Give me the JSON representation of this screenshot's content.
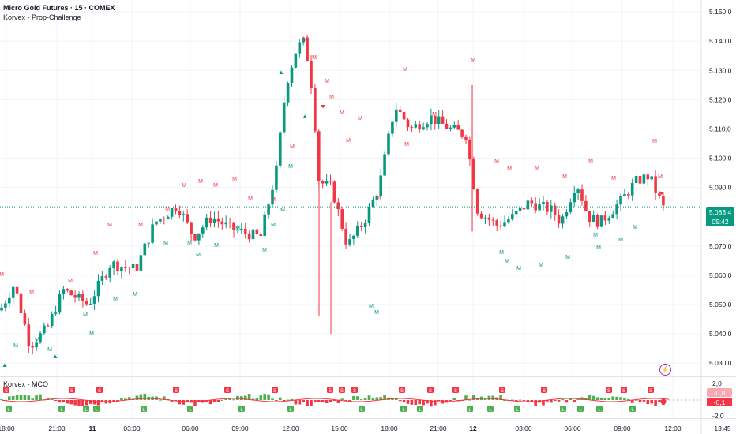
{
  "header": {
    "title": "Micro Gold Futures · 15 · COMEX",
    "indicator_main": "Korvex - Prop-Challenge",
    "indicator_sub": "Korvex - MCO"
  },
  "price_tag": {
    "price": "5.083,4",
    "countdown": "05:42"
  },
  "sub_tags": {
    "top": "-0,0",
    "bottom": "-0,1"
  },
  "sub_axis_labels": [
    "2,0",
    "-2,0"
  ],
  "icons": {
    "bolt": "lightning-icon"
  },
  "colors": {
    "up": "#089981",
    "down": "#f23645",
    "mco_up": "#4caf50",
    "mco_down": "#f23645",
    "ma": "#9c27b0"
  },
  "chart_data": {
    "type": "candlestick",
    "y_ticks": [
      "5.150,0",
      "5.140,0",
      "5.130,0",
      "5.120,0",
      "5.110,0",
      "5.100,0",
      "5.090,0",
      "5.070,0",
      "5.060,0",
      "5.050,0",
      "5.040,0",
      "5.030,0"
    ],
    "x_ticks": [
      "18:00",
      "21:00",
      "11",
      "03:00",
      "06:00",
      "09:00",
      "12:00",
      "15:00",
      "18:00",
      "21:00",
      "12",
      "03:00",
      "06:00",
      "09:00",
      "12:00",
      "13:45"
    ],
    "ylim": [
      5026,
      5153
    ],
    "last_price": 5083.4,
    "markers": {
      "sell": "M",
      "buy": "M",
      "short": "S",
      "long": "L"
    }
  }
}
